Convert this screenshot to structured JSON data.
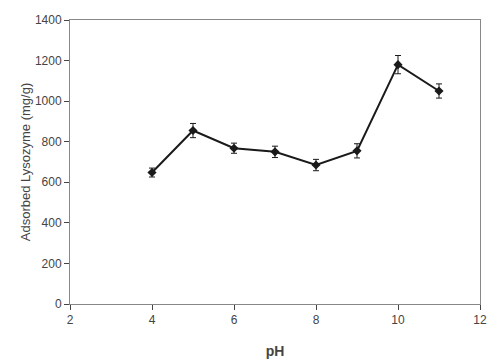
{
  "chart_data": {
    "type": "line",
    "xlabel": "pH",
    "ylabel": "Adsorbed Lysozyme (mg/g)",
    "x": [
      4,
      5,
      6,
      7,
      8,
      9,
      10,
      11
    ],
    "values": [
      648,
      855,
      768,
      750,
      685,
      755,
      1180,
      1050
    ],
    "yerr": [
      22,
      35,
      25,
      28,
      28,
      35,
      45,
      35
    ],
    "color": "#1a1a1a",
    "marker": "diamond",
    "line_style": "solid",
    "xlim": [
      2,
      12
    ],
    "ylim": [
      0,
      1400
    ],
    "xticks": [
      2,
      4,
      6,
      8,
      10,
      12
    ],
    "yticks": [
      0,
      200,
      400,
      600,
      800,
      1000,
      1200,
      1400
    ],
    "grid": false
  }
}
